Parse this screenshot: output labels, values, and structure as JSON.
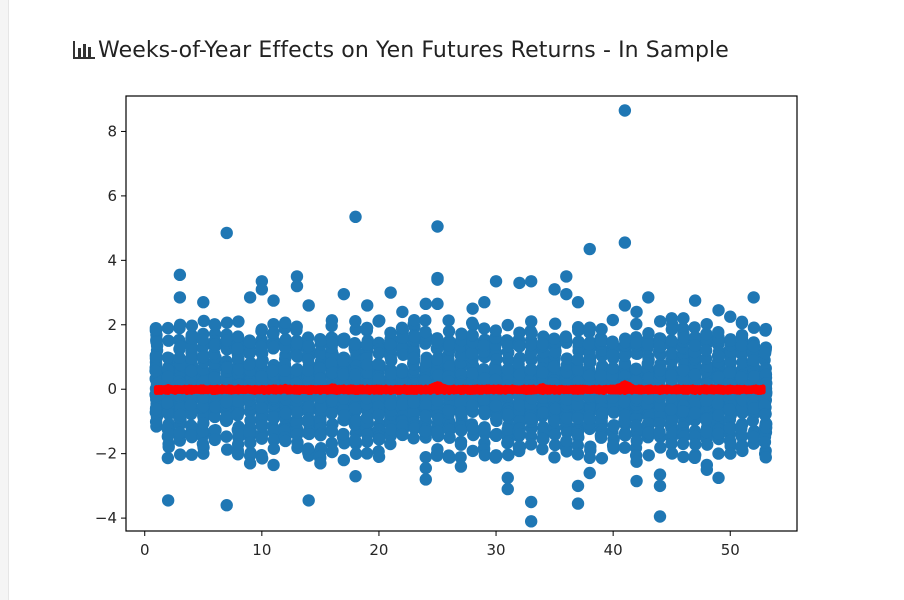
{
  "header": {
    "title": "Weeks-of-Year Effects on Yen Futures Returns - In Sample",
    "icon": "bar-chart-icon"
  },
  "chart_data": {
    "type": "scatter",
    "title": "",
    "xlabel": "",
    "ylabel": "",
    "xlim": [
      -1.6,
      55.7
    ],
    "ylim": [
      -4.4,
      9.1
    ],
    "xticks": [
      0,
      10,
      20,
      30,
      40,
      50
    ],
    "yticks": [
      -4,
      -2,
      0,
      2,
      4,
      6,
      8
    ],
    "xtick_labels": [
      "0",
      "10",
      "20",
      "30",
      "40",
      "50"
    ],
    "ytick_labels": [
      "−4",
      "−2",
      "0",
      "2",
      "4",
      "6",
      "8"
    ],
    "grid": false,
    "series": [
      {
        "marker": "circle",
        "color": "#1f77b4",
        "x_range": [
          1,
          53
        ],
        "typical_range": [
          -1.5,
          1.6
        ],
        "outliers": [
          {
            "x": 2,
            "y": -3.45
          },
          {
            "x": 3,
            "y": 3.55
          },
          {
            "x": 3,
            "y": 2.85
          },
          {
            "x": 5,
            "y": 2.7
          },
          {
            "x": 7,
            "y": 4.85
          },
          {
            "x": 7,
            "y": -3.6
          },
          {
            "x": 8,
            "y": 2.1
          },
          {
            "x": 9,
            "y": 2.85
          },
          {
            "x": 9,
            "y": -2.3
          },
          {
            "x": 10,
            "y": 3.35
          },
          {
            "x": 10,
            "y": 3.1
          },
          {
            "x": 11,
            "y": 2.75
          },
          {
            "x": 11,
            "y": -2.35
          },
          {
            "x": 13,
            "y": 3.5
          },
          {
            "x": 13,
            "y": 3.2
          },
          {
            "x": 14,
            "y": -3.45
          },
          {
            "x": 14,
            "y": 2.6
          },
          {
            "x": 15,
            "y": -2.3
          },
          {
            "x": 17,
            "y": 2.95
          },
          {
            "x": 17,
            "y": -2.2
          },
          {
            "x": 18,
            "y": 5.35
          },
          {
            "x": 18,
            "y": -2.7
          },
          {
            "x": 19,
            "y": 2.6
          },
          {
            "x": 21,
            "y": 3.0
          },
          {
            "x": 22,
            "y": 2.4
          },
          {
            "x": 24,
            "y": 2.65
          },
          {
            "x": 24,
            "y": -2.45
          },
          {
            "x": 24,
            "y": -2.8
          },
          {
            "x": 25,
            "y": 5.05
          },
          {
            "x": 25,
            "y": 3.45
          },
          {
            "x": 25,
            "y": 3.4
          },
          {
            "x": 25,
            "y": 2.65
          },
          {
            "x": 27,
            "y": -2.4
          },
          {
            "x": 28,
            "y": 2.5
          },
          {
            "x": 29,
            "y": 2.7
          },
          {
            "x": 30,
            "y": 3.35
          },
          {
            "x": 31,
            "y": -2.75
          },
          {
            "x": 31,
            "y": -3.1
          },
          {
            "x": 32,
            "y": 3.3
          },
          {
            "x": 33,
            "y": 3.35
          },
          {
            "x": 33,
            "y": -3.5
          },
          {
            "x": 33,
            "y": -4.1
          },
          {
            "x": 35,
            "y": 3.1
          },
          {
            "x": 36,
            "y": 3.5
          },
          {
            "x": 36,
            "y": 2.95
          },
          {
            "x": 37,
            "y": 2.7
          },
          {
            "x": 37,
            "y": -3.0
          },
          {
            "x": 37,
            "y": -3.55
          },
          {
            "x": 38,
            "y": 4.35
          },
          {
            "x": 38,
            "y": -2.6
          },
          {
            "x": 41,
            "y": 8.65
          },
          {
            "x": 41,
            "y": 4.55
          },
          {
            "x": 41,
            "y": 2.6
          },
          {
            "x": 42,
            "y": 2.4
          },
          {
            "x": 42,
            "y": -2.25
          },
          {
            "x": 42,
            "y": -2.85
          },
          {
            "x": 43,
            "y": 2.85
          },
          {
            "x": 44,
            "y": -2.65
          },
          {
            "x": 44,
            "y": -3.0
          },
          {
            "x": 44,
            "y": -3.95
          },
          {
            "x": 45,
            "y": 2.2
          },
          {
            "x": 46,
            "y": 2.2
          },
          {
            "x": 46,
            "y": -2.1
          },
          {
            "x": 47,
            "y": 2.75
          },
          {
            "x": 48,
            "y": -2.35
          },
          {
            "x": 48,
            "y": -2.5
          },
          {
            "x": 49,
            "y": 2.45
          },
          {
            "x": 49,
            "y": -2.75
          },
          {
            "x": 50,
            "y": 2.25
          },
          {
            "x": 51,
            "y": 2.05
          },
          {
            "x": 52,
            "y": 2.85
          }
        ]
      },
      {
        "marker": "circle",
        "color": "#ff0000",
        "x_range": [
          1,
          53
        ],
        "y_range": [
          -0.12,
          0.22
        ],
        "peaks": [
          {
            "x": 2,
            "y": 0.1
          },
          {
            "x": 12,
            "y": 0.1
          },
          {
            "x": 16,
            "y": 0.12
          },
          {
            "x": 25,
            "y": 0.2
          },
          {
            "x": 34,
            "y": 0.12
          },
          {
            "x": 41,
            "y": 0.22
          },
          {
            "x": 46,
            "y": 0.06
          },
          {
            "x": 50,
            "y": 0.05
          }
        ]
      }
    ]
  }
}
